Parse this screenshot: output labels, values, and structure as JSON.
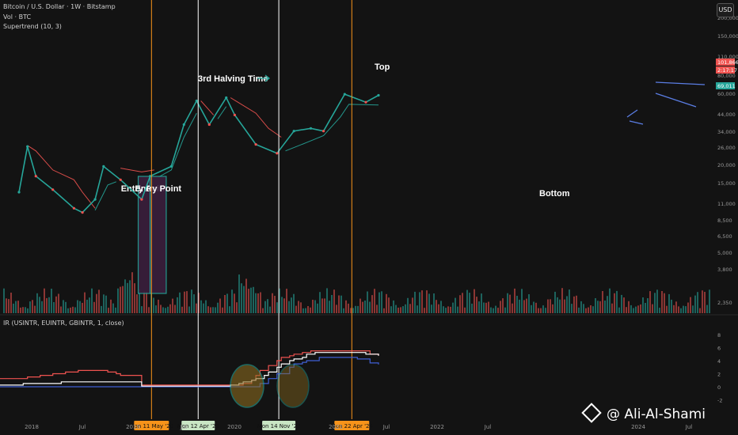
{
  "header": {
    "symbol": "Bitcoin / U.S. Dollar · 1W · Bitstamp",
    "volume": "Vol · BTC",
    "supertrend": "Supertrend (10, 3)",
    "ir": "IR (USINTR, EUINTR, GBINTR, 1, close)",
    "currency": "USD"
  },
  "watermark": "@ Ali-Al-Shami",
  "colors": {
    "background": "#131313",
    "up": "#26a69a",
    "down": "#ef5350",
    "annotation_box": "#3a1f3d",
    "halving_line": "#f7931a",
    "white_line": "#ffffff",
    "usintr": "#ef5350",
    "euintr": "#3f5fd4",
    "gbintr": "#ffffff"
  },
  "chart_data": [
    {
      "type": "line",
      "title": "Bitcoin / U.S. Dollar · 1W · Bitstamp",
      "scale": "log",
      "y_ticks": [
        "2,350",
        "3,800",
        "5,000",
        "6,500",
        "8,500",
        "11,000",
        "15,000",
        "20,000",
        "26,000",
        "34,000",
        "44,000",
        "60,000",
        "80,000",
        "110,000",
        "150,000",
        "200,000"
      ],
      "x_ticks": [
        "2018",
        "Jul",
        "2019",
        "Jul",
        "2020",
        "2021",
        "Jul",
        "2022",
        "Jul",
        "2024",
        "Jul"
      ],
      "price_labels": [
        "101,866",
        "2:17:17",
        "69,011"
      ],
      "series": [
        {
          "x": [
            "2017-10",
            "2017-12",
            "2018-02",
            "2018-06",
            "2018-11",
            "2019-01",
            "2019-04",
            "2019-06",
            "2019-10",
            "2020-03",
            "2020-05",
            "2020-10",
            "2021-01",
            "2021-04",
            "2021-07",
            "2021-11",
            "2022-01",
            "2022-06",
            "2022-11",
            "2023-03",
            "2023-07",
            "2023-10",
            "2024-03",
            "2024-08",
            "2024-11"
          ],
          "values": [
            6000,
            19000,
            9000,
            6400,
            4000,
            3600,
            5000,
            11500,
            8200,
            5000,
            9000,
            11500,
            33000,
            60000,
            33000,
            65000,
            42000,
            20000,
            16000,
            28000,
            30000,
            28000,
            71000,
            58000,
            69011
          ]
        }
      ],
      "annotations": [
        {
          "text": "Entry Point",
          "x_range": [
            "2020-02",
            "2020-05"
          ]
        },
        {
          "text": "Entry Point",
          "x_range": [
            "2020-05",
            "2020-09"
          ]
        },
        {
          "text": "3rd Halving Time",
          "x": "2020-05-11"
        },
        {
          "text": "Top",
          "x": "2021-04-12"
        },
        {
          "text": "Bottom",
          "x": "2022-11-14"
        }
      ],
      "vertical_markers": [
        {
          "label": "Mon 11 May '20",
          "color": "#f7931a"
        },
        {
          "label": "Mon 12 Apr '21",
          "color": "#ffffff"
        },
        {
          "label": "Mon 14 Nov '22",
          "color": "#ffffff"
        },
        {
          "label": "Mon 22 Apr '24",
          "color": "#f7931a"
        }
      ]
    },
    {
      "type": "line",
      "title": "IR (USINTR, EUINTR, GBINTR, 1, close)",
      "y_ticks": [
        "8",
        "6",
        "4",
        "2",
        "0",
        "-2"
      ],
      "ylim": [
        -2,
        8
      ],
      "series": [
        {
          "name": "USINTR",
          "color": "#ef5350",
          "x": [
            "2017-10",
            "2017-12",
            "2018-03",
            "2018-06",
            "2018-09",
            "2018-12",
            "2019-07",
            "2019-09",
            "2019-10",
            "2020-03",
            "2022-03",
            "2022-05",
            "2022-06",
            "2022-07",
            "2022-09",
            "2022-11",
            "2022-12",
            "2023-02",
            "2023-03",
            "2023-05",
            "2023-07",
            "2024-09",
            "2024-11"
          ],
          "values": [
            1.25,
            1.5,
            1.75,
            2.0,
            2.25,
            2.5,
            2.25,
            2.0,
            1.75,
            0.25,
            0.5,
            1.0,
            1.75,
            2.5,
            3.25,
            4.0,
            4.5,
            4.75,
            5.0,
            5.25,
            5.5,
            5.0,
            4.75
          ]
        },
        {
          "name": "EUINTR",
          "color": "#3f5fd4",
          "x": [
            "2017-10",
            "2022-07",
            "2022-09",
            "2022-11",
            "2023-02",
            "2023-03",
            "2023-05",
            "2023-06",
            "2023-09",
            "2024-06",
            "2024-09",
            "2024-11"
          ],
          "values": [
            0,
            0.5,
            1.25,
            2.0,
            3.0,
            3.5,
            3.75,
            4.0,
            4.5,
            4.25,
            3.65,
            3.4
          ]
        },
        {
          "name": "GBINTR",
          "color": "#ffffff",
          "x": [
            "2017-10",
            "2017-11",
            "2018-08",
            "2020-03",
            "2021-12",
            "2022-02",
            "2022-03",
            "2022-05",
            "2022-06",
            "2022-08",
            "2022-09",
            "2022-11",
            "2022-12",
            "2023-02",
            "2023-03",
            "2023-05",
            "2023-06",
            "2023-08",
            "2024-08",
            "2024-11"
          ],
          "values": [
            0.25,
            0.5,
            0.75,
            0.1,
            0.25,
            0.5,
            0.75,
            1.0,
            1.25,
            1.75,
            2.25,
            3.0,
            3.5,
            4.0,
            4.25,
            4.5,
            5.0,
            5.25,
            5.0,
            4.75
          ]
        }
      ]
    }
  ]
}
